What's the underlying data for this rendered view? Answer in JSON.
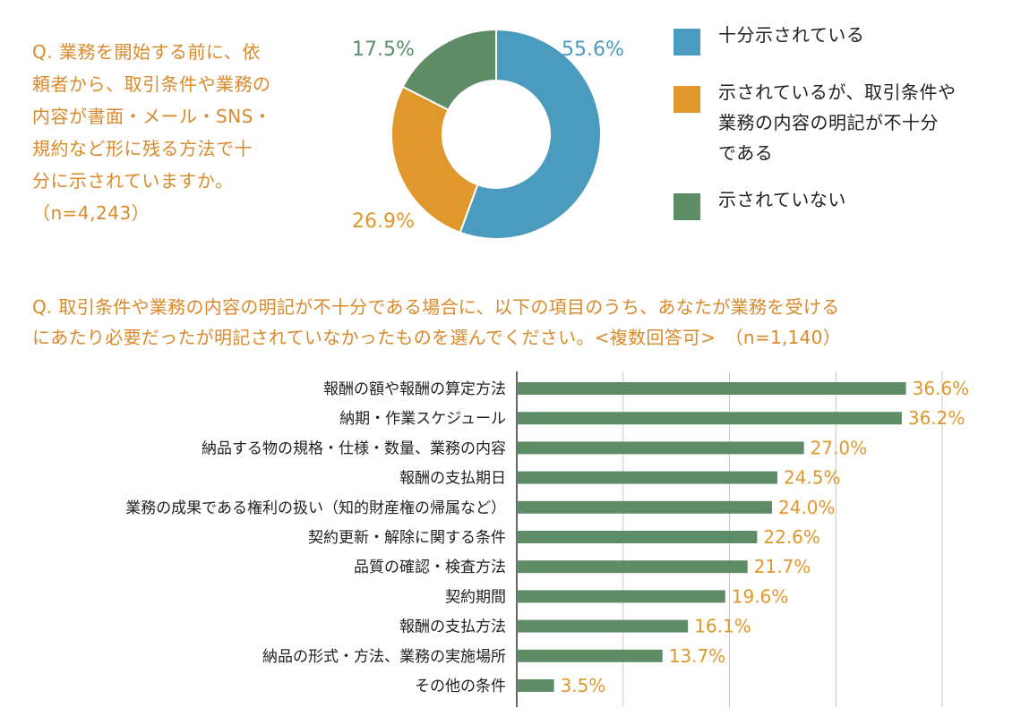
{
  "question1": {
    "text": "Q. 業務を開始する前に、依\n頼者から、取引条件や業務の\n内容が書面・メール・SNS・\n規約など形に残る方法で十\n分に示されていますか。\n（n=4,243）"
  },
  "question2": {
    "text": "Q. 取引条件や業務の内容の明記が不十分である場合に、以下の項目のうち、あなたが業務を受ける\nにあたり必要だったが明記されていなかったものを選んでください。<複数回答可>　（n=1,140）"
  },
  "colors": {
    "blue": "#4a9bbd",
    "orange": "#e0972b",
    "green": "#5e8c67",
    "grid": "#c8c8c8",
    "text": "#222222"
  },
  "chart_data": [
    {
      "type": "pie",
      "style": "donut",
      "title": "",
      "slices": [
        {
          "label": "十分示されている",
          "value": 55.6,
          "value_label": "55.6%",
          "color": "#4a9bbd"
        },
        {
          "label": "示されているが、取引条件や\n業務の内容の明記が不十分\nである",
          "value": 26.9,
          "value_label": "26.9%",
          "color": "#e0972b"
        },
        {
          "label": "示されていない",
          "value": 17.5,
          "value_label": "17.5%",
          "color": "#5e8c67"
        }
      ],
      "legend_placement": "right"
    },
    {
      "type": "bar",
      "orientation": "horizontal",
      "title": "",
      "categories": [
        "報酬の額や報酬の算定方法",
        "納期・作業スケジュール",
        "納品する物の規格・仕様・数量、業務の内容",
        "報酬の支払期日",
        "業務の成果である権利の扱い（知的財産権の帰属など）",
        "契約更新・解除に関する条件",
        "品質の確認・検査方法",
        "契約期間",
        "報酬の支払方法",
        "納品の形式・方法、業務の実施場所",
        "その他の条件"
      ],
      "values": [
        36.6,
        36.2,
        27.0,
        24.5,
        24.0,
        22.6,
        21.7,
        19.6,
        16.1,
        13.7,
        3.5
      ],
      "value_labels": [
        "36.6%",
        "36.2%",
        "27.0%",
        "24.5%",
        "24.0%",
        "22.6%",
        "21.7%",
        "19.6%",
        "16.1%",
        "13.7%",
        "3.5%"
      ],
      "xlim": [
        0,
        40
      ],
      "grid_step": 10,
      "grid": true,
      "bar_color": "#5e8c67",
      "label_color": "#e0972b"
    }
  ]
}
